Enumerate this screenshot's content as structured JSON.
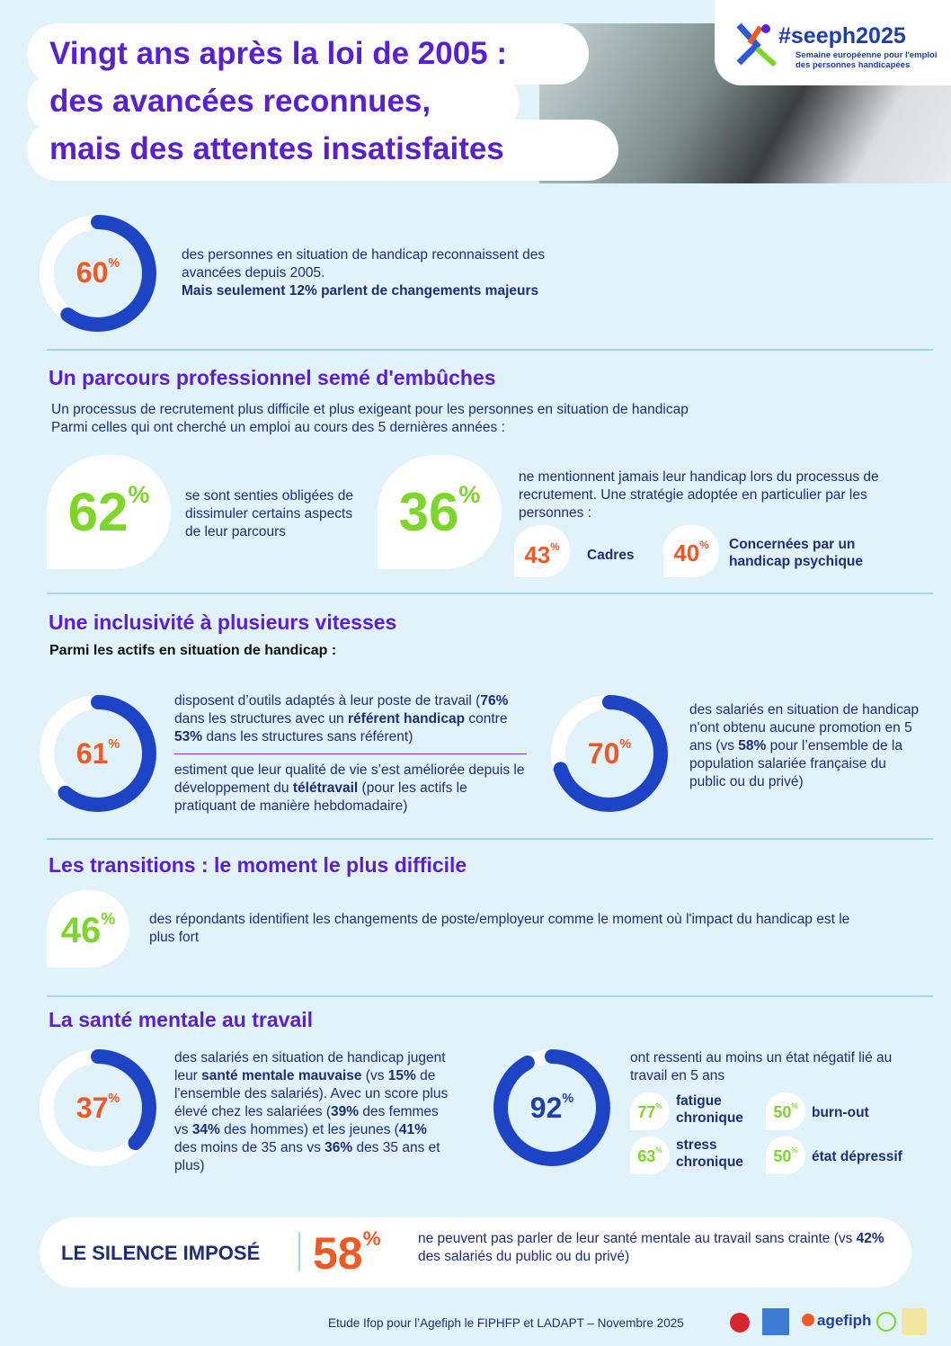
{
  "header": {
    "title_lines": [
      "Vingt ans après la loi de 2005 :",
      "des avancées reconnues,",
      "mais des attentes insatisfaites"
    ],
    "logo": {
      "hashtag": "#seeph2025",
      "tagline": [
        "Semaine européenne pour l'emploi",
        "des personnes handicapées"
      ]
    }
  },
  "unit": "%",
  "avancees": {
    "value": 60,
    "text": [
      [
        {
          "t": "des personnes en situation de handicap  reconnaissent des avancées depuis 2005."
        }
      ],
      [
        {
          "t": "Mais seulement 12% parlent de changements majeurs",
          "b": true
        }
      ]
    ]
  },
  "parcours": {
    "heading": "Un parcours professionnel semé d'embûches",
    "intro": [
      "Un processus de recrutement plus difficile et plus exigeant pour les personnes en situation de handicap",
      "Parmi celles qui ont cherché un emploi au cours des 5 dernières années :"
    ],
    "dissimuler": {
      "value": 62,
      "text": [
        [
          {
            "t": "se sont senties obligées de dissimuler certains aspects de leur parcours"
          }
        ]
      ]
    },
    "non_mention": {
      "value": 36,
      "text": [
        [
          {
            "t": "ne mentionnent jamais leur handicap lors du processus de recrutement. Une stratégie adoptée en particulier par les personnes :"
          }
        ]
      ],
      "details": [
        {
          "value": 43,
          "label": "Cadres"
        },
        {
          "value": 40,
          "label": "Concernées par un handicap psychique"
        }
      ]
    }
  },
  "inclusivite": {
    "heading": "Une inclusivité à plusieurs vitesses",
    "subheading": "Parmi les actifs en situation de handicap :",
    "outils": {
      "value": 61,
      "text": [
        [
          {
            "t": "disposent d’outils adaptés à leur poste de travail ("
          },
          {
            "t": "76%",
            "b": true
          },
          {
            "t": " dans les structures avec un "
          },
          {
            "t": "référent handicap",
            "b": true
          },
          {
            "t": " contre "
          },
          {
            "t": "53%",
            "b": true
          },
          {
            "t": " dans les structures sans référent)"
          }
        ],
        [
          {
            "t": "estiment que leur qualité de vie s’est améliorée depuis le développement du "
          },
          {
            "t": "télétravail",
            "b": true
          },
          {
            "t": " (pour les actifs le pratiquant de manière hebdomadaire)"
          }
        ]
      ]
    },
    "promotion": {
      "value": 70,
      "text": [
        [
          {
            "t": "des salariés en situation de handicap n'ont obtenu aucune promotion en 5 ans (vs "
          },
          {
            "t": "58%",
            "b": true
          },
          {
            "t": " pour l’ensemble de la population salariée française du public ou du privé)"
          }
        ]
      ]
    }
  },
  "transitions": {
    "heading": "Les transitions : le moment le plus difficile",
    "value": 46,
    "text": [
      [
        {
          "t": "des répondants identifient les changements de poste/employeur comme le moment où l'impact du handicap est le plus fort"
        }
      ]
    ]
  },
  "sante": {
    "heading": "La santé mentale au travail",
    "mauvaise": {
      "value": 37,
      "text": [
        [
          {
            "t": "des salariés en situation de handicap jugent leur "
          },
          {
            "t": "santé mentale mauvaise",
            "b": true
          },
          {
            "t": " (vs "
          },
          {
            "t": "15%",
            "b": true
          },
          {
            "t": " de l'ensemble des salariés). Avec un score plus élevé chez les salariées ("
          },
          {
            "t": "39%",
            "b": true
          },
          {
            "t": " des femmes vs "
          },
          {
            "t": "34%",
            "b": true
          },
          {
            "t": " des hommes) et les jeunes ("
          },
          {
            "t": "41%",
            "b": true
          },
          {
            "t": " des moins de 35 ans vs "
          },
          {
            "t": "36%",
            "b": true
          },
          {
            "t": " des 35 ans et plus)"
          }
        ]
      ]
    },
    "negatif": {
      "value": 92,
      "text": [
        [
          {
            "t": "ont ressenti au moins un état négatif lié au travail en 5 ans"
          }
        ]
      ],
      "details": [
        {
          "value": 77,
          "label": "fatigue chronique"
        },
        {
          "value": 50,
          "label": "burn-out"
        },
        {
          "value": 63,
          "label": "stress chronique"
        },
        {
          "value": 50,
          "label": "état dépressif"
        }
      ]
    }
  },
  "silence": {
    "label": "LE SILENCE IMPOSÉ",
    "value": 58,
    "text": [
      [
        {
          "t": "ne peuvent pas parler de leur santé mentale au travail sans crainte (vs "
        },
        {
          "t": "42%",
          "b": true
        },
        {
          "t": " des salariés du public ou du privé)"
        }
      ]
    ]
  },
  "footer": {
    "source": "Etude Ifop pour l’Agefiph le FIPHFP et LADAPT – Novembre 2025",
    "logos": [
      "agefiph"
    ]
  }
}
